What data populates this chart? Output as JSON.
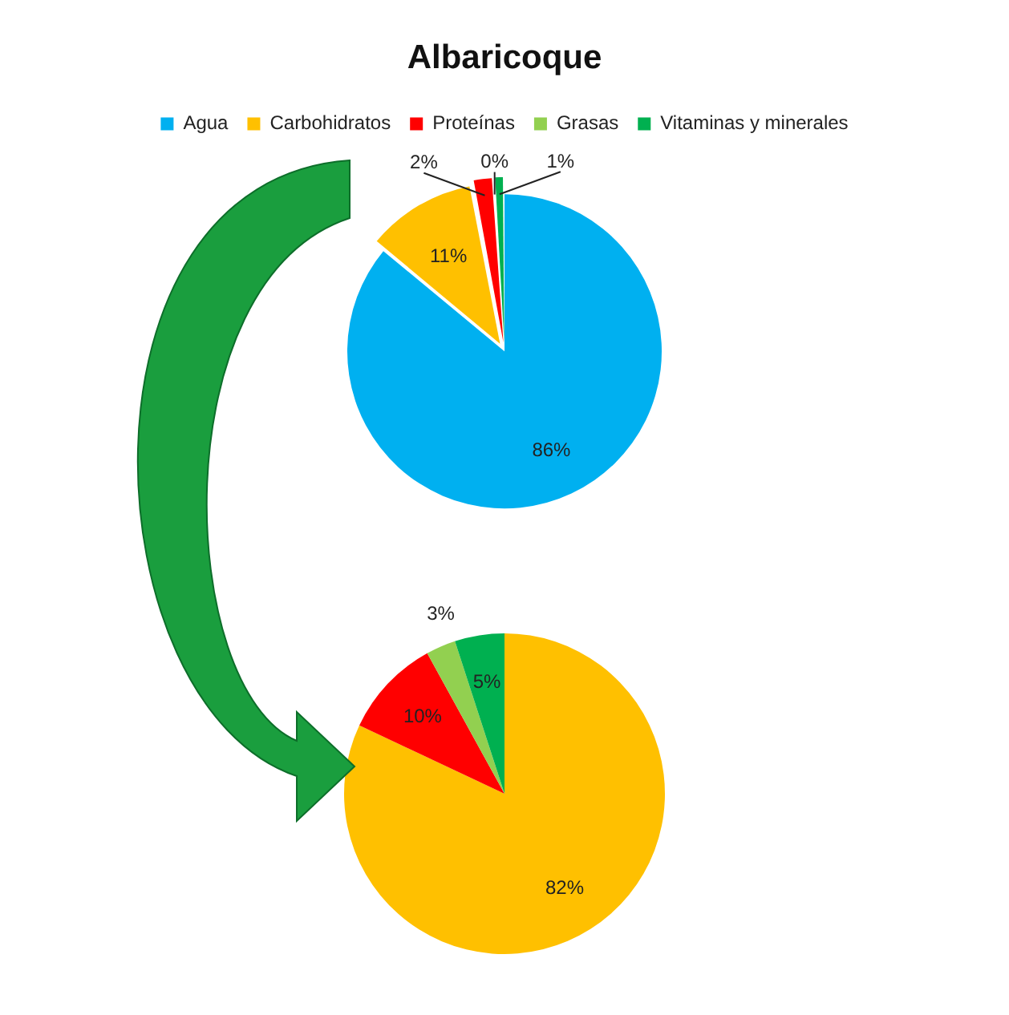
{
  "chart_data": [
    {
      "type": "pie",
      "title": "Albaricoque",
      "legend": "top",
      "categories": [
        "Agua",
        "Carbohidratos",
        "Proteínas",
        "Grasas",
        "Vitaminas y minerales"
      ],
      "values": [
        86,
        11,
        2,
        0,
        1
      ],
      "value_labels": [
        "86%",
        "11%",
        "2%",
        "0%",
        "1%"
      ],
      "colors": [
        "#00b0f0",
        "#ffc000",
        "#ff0000",
        "#92d050",
        "#00b050"
      ]
    },
    {
      "type": "pie",
      "categories": [
        null,
        null,
        null,
        null
      ],
      "values": [
        82,
        10,
        3,
        5
      ],
      "value_labels": [
        "82%",
        "10%",
        "3%",
        "5%"
      ],
      "colors": [
        "#ffc000",
        "#ff0000",
        "#92d050",
        "#00b050"
      ]
    }
  ]
}
